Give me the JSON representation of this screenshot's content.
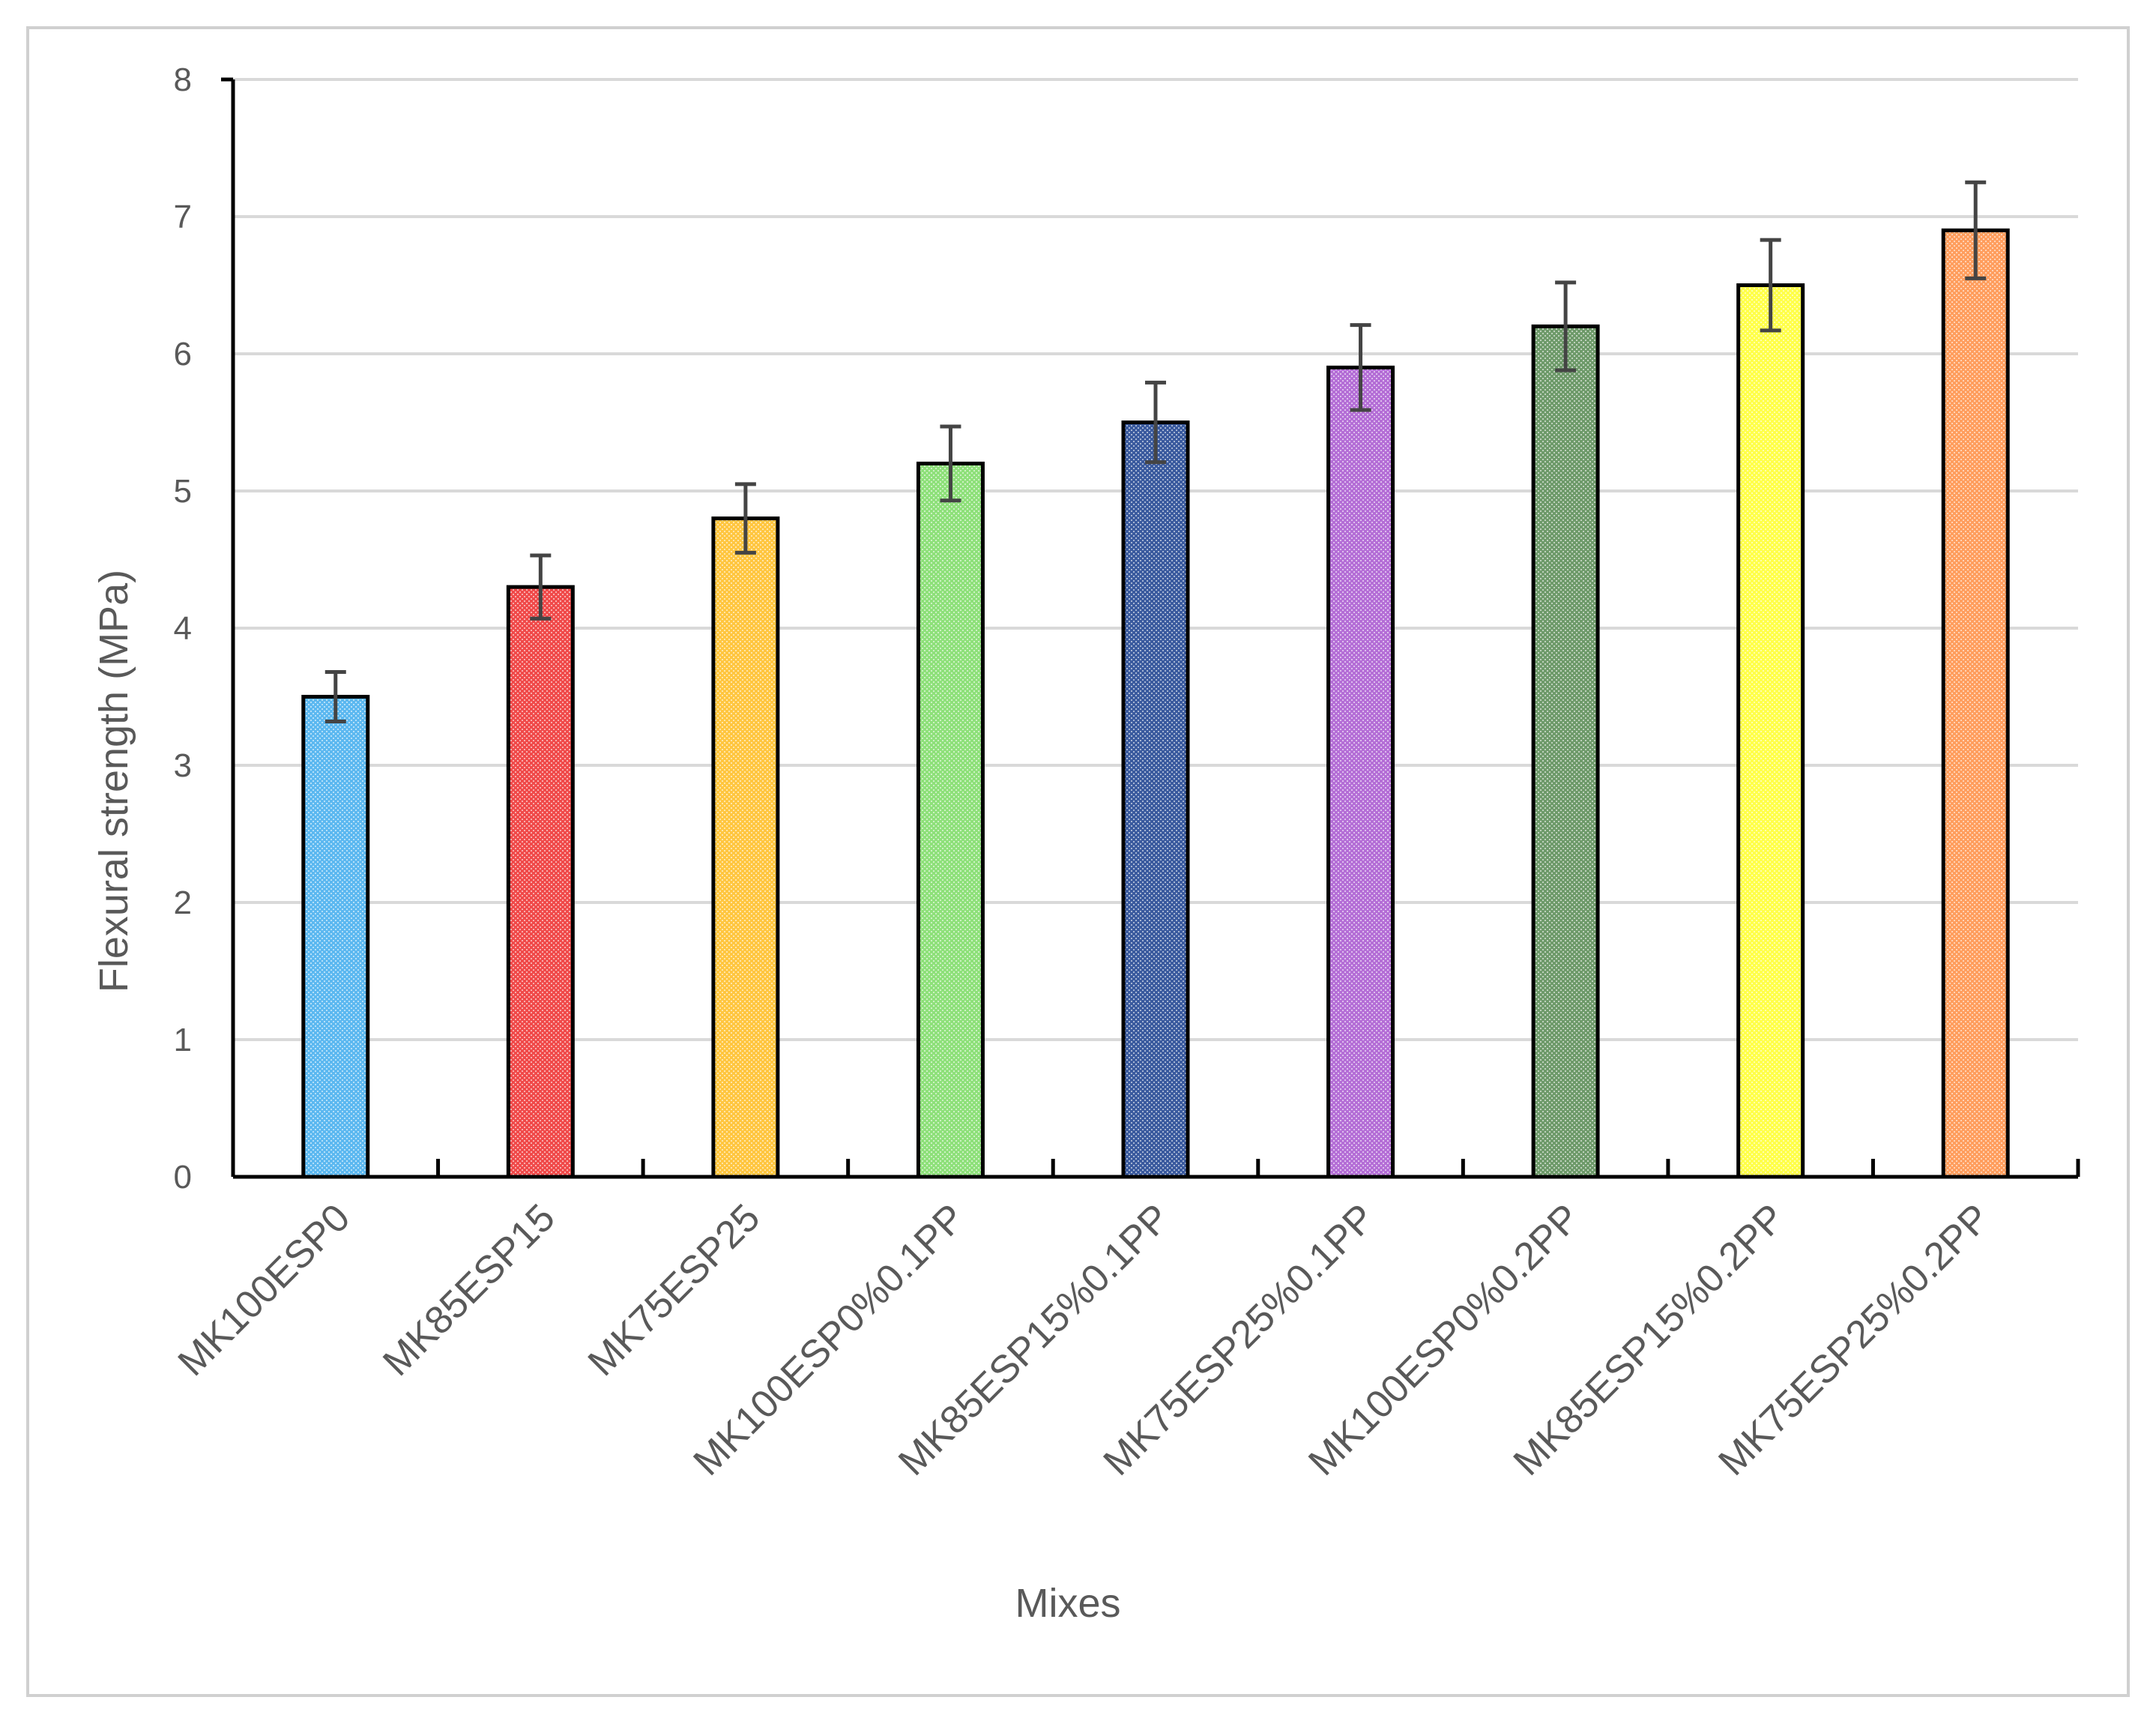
{
  "chart_data": {
    "type": "bar",
    "title": "",
    "xlabel": "Mixes",
    "ylabel": "Flexural strength (MPa)",
    "ylim": [
      0,
      8
    ],
    "yticks": [
      0,
      1,
      2,
      3,
      4,
      5,
      6,
      7,
      8
    ],
    "grid": true,
    "legend": "none",
    "categories": [
      "MK100ESP0",
      "MK85ESP15",
      "MK75ESP25",
      "MK100ESP0%0.1PP",
      "MK85ESP15%0.1PP",
      "MK75ESP25%0.1PP",
      "MK100ESP0%0.2PP",
      "MK85ESP15%0.2PP",
      "MK75ESP25%0.2PP"
    ],
    "values": [
      3.5,
      4.3,
      4.8,
      5.2,
      5.5,
      5.9,
      6.2,
      6.5,
      6.9
    ],
    "error": [
      0.18,
      0.23,
      0.25,
      0.27,
      0.29,
      0.31,
      0.32,
      0.33,
      0.35
    ],
    "colors": [
      "#5cb8f0",
      "#f04a4a",
      "#ffc640",
      "#8ee07a",
      "#3a5a9e",
      "#b46ed6",
      "#6e9a6a",
      "#ffff4a",
      "#ff9e5e"
    ]
  }
}
